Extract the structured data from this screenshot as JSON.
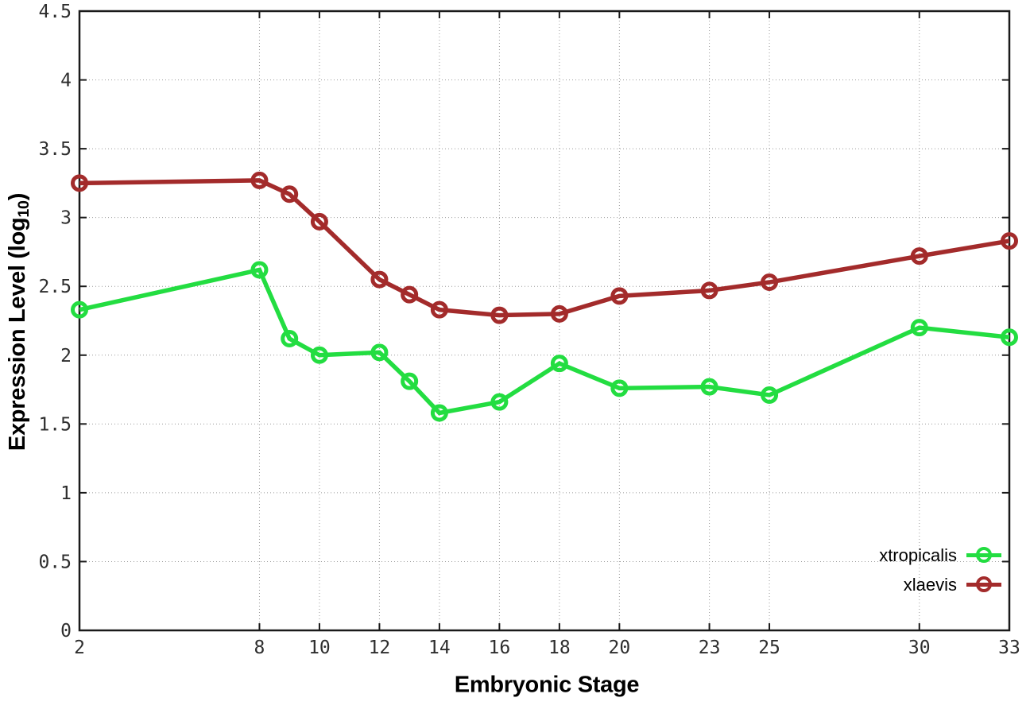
{
  "chart_data": {
    "type": "line",
    "title": "",
    "xlabel": "Embryonic Stage",
    "ylabel": "Expression Level (log10)",
    "ylabel_parts": {
      "prefix": "Expression Level (log",
      "sub": "10",
      "suffix": ")"
    },
    "x": [
      2,
      8,
      9,
      10,
      12,
      13,
      14,
      16,
      18,
      20,
      23,
      25,
      30,
      33
    ],
    "series": [
      {
        "name": "xtropicalis",
        "color": "#23dd41",
        "values": [
          2.33,
          2.62,
          2.12,
          2.0,
          2.02,
          1.81,
          1.58,
          1.66,
          1.94,
          1.76,
          1.77,
          1.71,
          2.2,
          2.13
        ]
      },
      {
        "name": "xlaevis",
        "color": "#a32b2b",
        "values": [
          3.25,
          3.27,
          3.17,
          2.97,
          2.55,
          2.44,
          2.33,
          2.29,
          2.3,
          2.43,
          2.47,
          2.53,
          2.72,
          2.83
        ]
      }
    ],
    "xticks": [
      2,
      8,
      10,
      12,
      14,
      16,
      18,
      20,
      23,
      25,
      30,
      33
    ],
    "yticks": [
      0,
      0.5,
      1,
      1.5,
      2,
      2.5,
      3,
      3.5,
      4,
      4.5
    ],
    "xlim": [
      2,
      33
    ],
    "ylim": [
      0,
      4.5
    ],
    "grid": true,
    "marker": "open-circle",
    "legend_position": "inside-bottom-right",
    "grid_color": "#9a9a9a",
    "axis_color": "#1a1a1a",
    "tick_label_color": "#2e2e2e",
    "background_color": "#ffffff"
  }
}
